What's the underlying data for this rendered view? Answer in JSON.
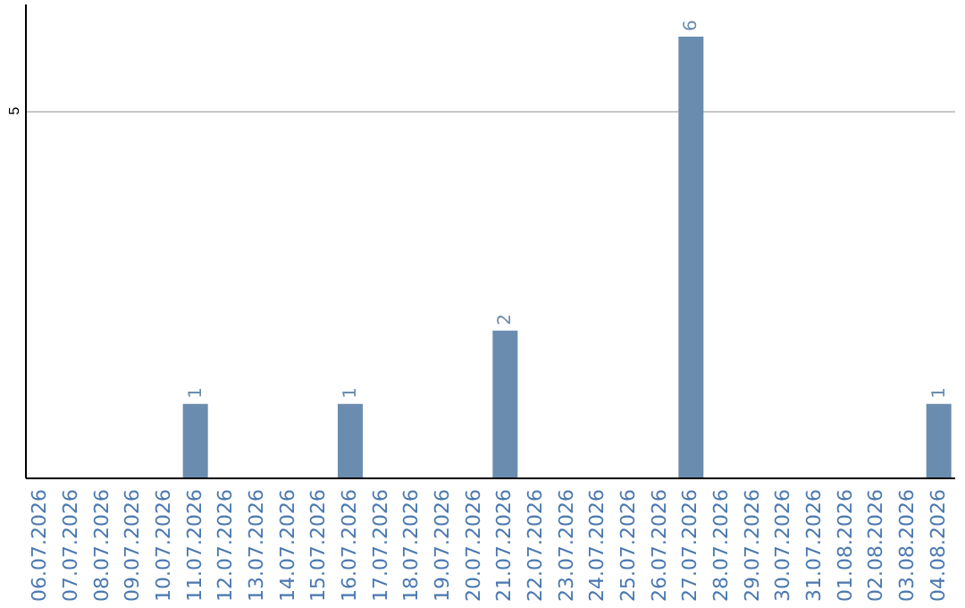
{
  "chart_data": {
    "type": "bar",
    "categories": [
      "06.07.2026",
      "07.07.2026",
      "08.07.2026",
      "09.07.2026",
      "10.07.2026",
      "11.07.2026",
      "12.07.2026",
      "13.07.2026",
      "14.07.2026",
      "15.07.2026",
      "16.07.2026",
      "17.07.2026",
      "18.07.2026",
      "19.07.2026",
      "20.07.2026",
      "21.07.2026",
      "22.07.2026",
      "23.07.2026",
      "24.07.2026",
      "25.07.2026",
      "26.07.2026",
      "27.07.2026",
      "28.07.2026",
      "29.07.2026",
      "30.07.2026",
      "31.07.2026",
      "01.08.2026",
      "02.08.2026",
      "03.08.2026",
      "04.08.2026"
    ],
    "values": [
      0,
      0,
      0,
      0,
      0,
      1,
      0,
      0,
      0,
      0,
      1,
      0,
      0,
      0,
      0,
      2,
      0,
      0,
      0,
      0,
      0,
      6,
      0,
      0,
      0,
      0,
      0,
      0,
      0,
      1
    ],
    "value_labels": [
      null,
      null,
      null,
      null,
      null,
      "1",
      null,
      null,
      null,
      null,
      "1",
      null,
      null,
      null,
      null,
      "2",
      null,
      null,
      null,
      null,
      null,
      "6",
      null,
      null,
      null,
      null,
      null,
      null,
      null,
      "1"
    ],
    "color": "#6a8caf",
    "ylim": [
      0,
      6.45
    ],
    "yticks": [
      5
    ],
    "grid": "y"
  }
}
